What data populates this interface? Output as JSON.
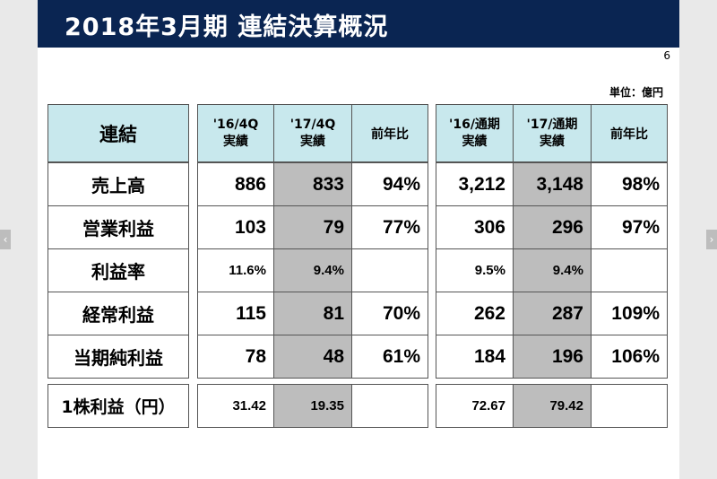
{
  "title": "2018年3月期 連結決算概況",
  "page_number": "6",
  "unit": "単位：億円",
  "table_left": {
    "corner": "連結",
    "col1": "'16/4Q\n実績",
    "col2": "'17/4Q\n実績",
    "col3": "前年比"
  },
  "table_right": {
    "col1": "'16/通期\n実績",
    "col2": "'17/通期\n実績",
    "col3": "前年比"
  },
  "rows": [
    {
      "label": "売上高",
      "q16": "886",
      "q17": "833",
      "qyoy": "94%",
      "f16": "3,212",
      "f17": "3,148",
      "fyoy": "98%"
    },
    {
      "label": "営業利益",
      "q16": "103",
      "q17": "79",
      "qyoy": "77%",
      "f16": "306",
      "f17": "296",
      "fyoy": "97%"
    },
    {
      "label": "利益率",
      "q16": "11.6%",
      "q17": "9.4%",
      "qyoy": "",
      "f16": "9.5%",
      "f17": "9.4%",
      "fyoy": ""
    },
    {
      "label": "経常利益",
      "q16": "115",
      "q17": "81",
      "qyoy": "70%",
      "f16": "262",
      "f17": "287",
      "fyoy": "109%"
    },
    {
      "label": "当期純利益",
      "q16": "78",
      "q17": "48",
      "qyoy": "61%",
      "f16": "184",
      "f17": "196",
      "fyoy": "106%"
    }
  ],
  "eps": {
    "label": "1株利益（円）",
    "q16": "31.42",
    "q17": "19.35",
    "qyoy": "",
    "f16": "72.67",
    "f17": "79.42",
    "fyoy": ""
  },
  "nav": {
    "prev": "‹",
    "next": "›"
  }
}
